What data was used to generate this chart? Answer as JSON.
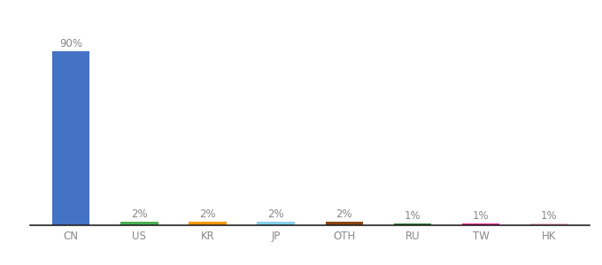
{
  "categories": [
    "CN",
    "US",
    "KR",
    "JP",
    "OTH",
    "RU",
    "TW",
    "HK"
  ],
  "values": [
    90,
    2,
    2,
    2,
    2,
    1,
    1,
    1
  ],
  "labels": [
    "90%",
    "2%",
    "2%",
    "2%",
    "2%",
    "1%",
    "1%",
    "1%"
  ],
  "bar_colors": [
    "#4472C4",
    "#4CAF50",
    "#FF9800",
    "#87CEEB",
    "#8B4513",
    "#2E7D32",
    "#E91E8C",
    "#FFB6C1"
  ],
  "background_color": "#ffffff",
  "ylim": [
    0,
    100
  ],
  "tick_fontsize": 8.5,
  "value_fontsize": 8.5,
  "bar_width": 0.55
}
